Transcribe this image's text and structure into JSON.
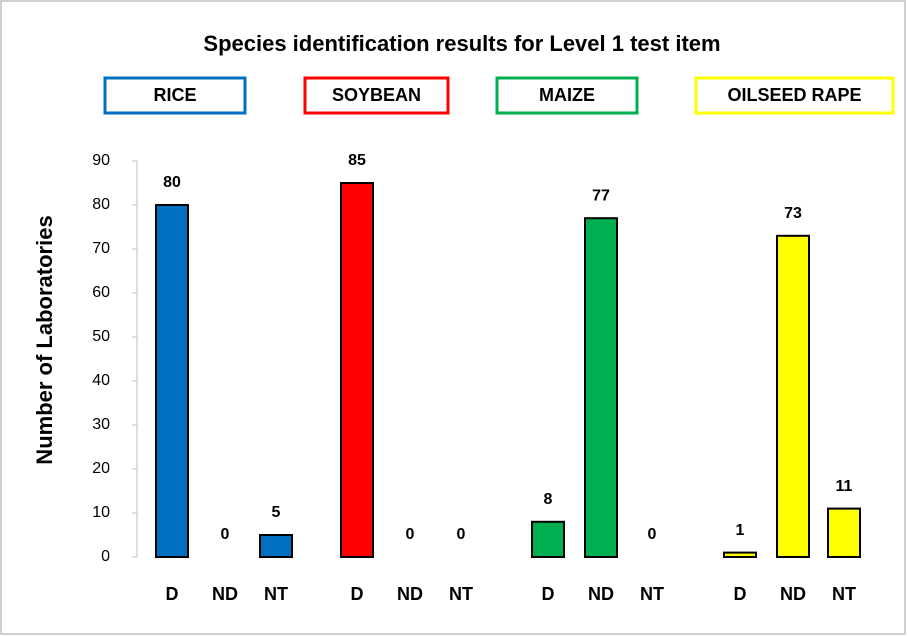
{
  "chart_data": {
    "type": "bar",
    "title": "Species identification results for Level 1 test item",
    "y_label": "Number of Laboratories",
    "ylim": [
      0,
      90
    ],
    "yticks": [
      0,
      10,
      20,
      30,
      40,
      50,
      60,
      70,
      80,
      90
    ],
    "series": [
      {
        "name": "RICE",
        "color": "#0070c0",
        "categories": [
          "D",
          "ND",
          "NT"
        ],
        "values": [
          80,
          0,
          5
        ]
      },
      {
        "name": "SOYBEAN",
        "color": "#ff0000",
        "categories": [
          "D",
          "ND",
          "NT"
        ],
        "values": [
          85,
          0,
          0
        ]
      },
      {
        "name": "MAIZE",
        "color": "#00b050",
        "categories": [
          "D",
          "ND",
          "NT"
        ],
        "values": [
          8,
          77,
          0
        ]
      },
      {
        "name": "OILSEED RAPE",
        "color": "#ffff00",
        "categories": [
          "D",
          "ND",
          "NT"
        ],
        "values": [
          1,
          73,
          11
        ]
      }
    ]
  }
}
